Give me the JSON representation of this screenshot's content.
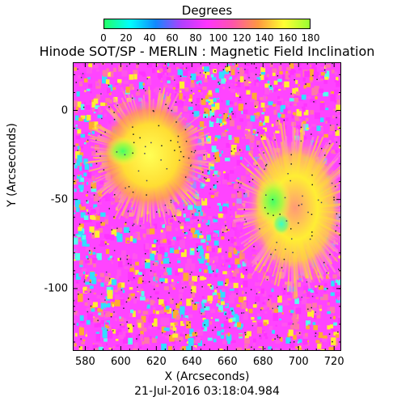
{
  "colorbar": {
    "title": "Degrees",
    "ticks": [
      "0",
      "20",
      "40",
      "60",
      "80",
      "100",
      "120",
      "140",
      "160",
      "180"
    ]
  },
  "title": "Hinode SOT/SP - MERLIN : Magnetic Field Inclination",
  "x_axis": {
    "label": "X (Arcseconds)",
    "ticks": [
      "580",
      "600",
      "620",
      "640",
      "660",
      "680",
      "700",
      "720"
    ],
    "range": [
      573,
      724
    ]
  },
  "y_axis": {
    "label": "Y (Arcseconds)",
    "ticks": [
      "0",
      "-50",
      "-100"
    ],
    "range": [
      -135,
      27
    ]
  },
  "timestamp": "21-Jul-2016 03:18:04.984",
  "colors": {
    "scale": [
      "#22ff66",
      "#00ffff",
      "#1188ff",
      "#b040ff",
      "#ff33ff",
      "#ff55aa",
      "#ff9940",
      "#ffff33",
      "#99ff33"
    ],
    "magenta": "#ff33ff",
    "cyan": "#33ddff",
    "yellow": "#ffee22"
  }
}
